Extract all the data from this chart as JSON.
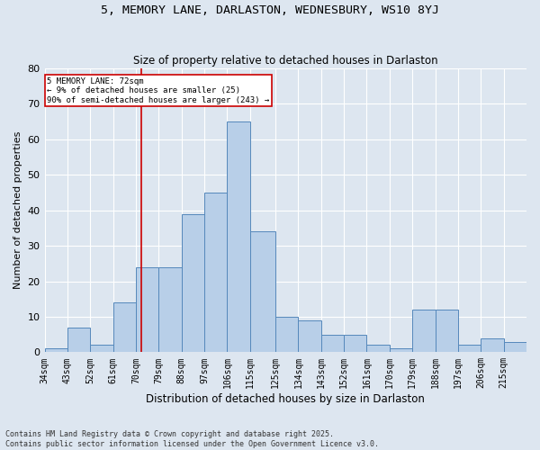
{
  "title1": "5, MEMORY LANE, DARLASTON, WEDNESBURY, WS10 8YJ",
  "title2": "Size of property relative to detached houses in Darlaston",
  "xlabel": "Distribution of detached houses by size in Darlaston",
  "ylabel": "Number of detached properties",
  "footer1": "Contains HM Land Registry data © Crown copyright and database right 2025.",
  "footer2": "Contains public sector information licensed under the Open Government Licence v3.0.",
  "annotation_line1": "5 MEMORY LANE: 72sqm",
  "annotation_line2": "← 9% of detached houses are smaller (25)",
  "annotation_line3": "90% of semi-detached houses are larger (243) →",
  "property_size": 72,
  "bar_color": "#b8cfe8",
  "bar_edge_color": "#5588bb",
  "redline_color": "#cc0000",
  "annotation_box_color": "#ffffff",
  "annotation_box_edgecolor": "#cc0000",
  "bg_color": "#dde6f0",
  "plot_bg_color": "#dde6f0",
  "grid_color": "#ffffff",
  "categories": [
    "34sqm",
    "43sqm",
    "52sqm",
    "61sqm",
    "70sqm",
    "79sqm",
    "88sqm",
    "97sqm",
    "106sqm",
    "115sqm",
    "125sqm",
    "134sqm",
    "143sqm",
    "152sqm",
    "161sqm",
    "170sqm",
    "179sqm",
    "188sqm",
    "197sqm",
    "206sqm",
    "215sqm"
  ],
  "bin_edges": [
    34,
    43,
    52,
    61,
    70,
    79,
    88,
    97,
    106,
    115,
    125,
    134,
    143,
    152,
    161,
    170,
    179,
    188,
    197,
    206,
    215,
    224
  ],
  "values": [
    1,
    7,
    2,
    14,
    24,
    24,
    39,
    45,
    65,
    34,
    10,
    9,
    5,
    5,
    2,
    1,
    12,
    12,
    2,
    4,
    3
  ],
  "ylim": [
    0,
    80
  ],
  "yticks": [
    0,
    10,
    20,
    30,
    40,
    50,
    60,
    70,
    80
  ]
}
